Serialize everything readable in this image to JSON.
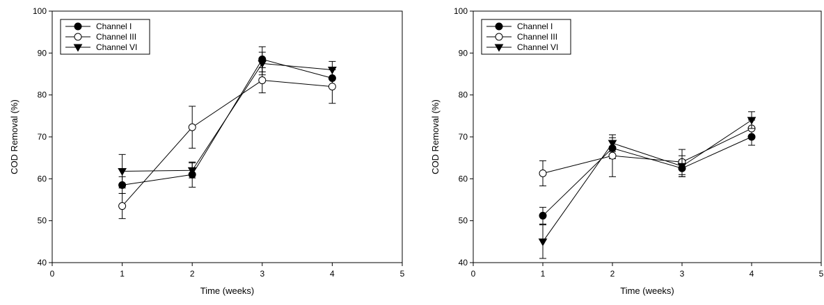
{
  "chart_data": [
    {
      "type": "line",
      "xlabel": "Time (weeks)",
      "ylabel": "COD Removal (%)",
      "xlim": [
        0,
        5
      ],
      "ylim": [
        40,
        100
      ],
      "xticks": [
        0,
        1,
        2,
        3,
        4,
        5
      ],
      "yticks": [
        40,
        50,
        60,
        70,
        80,
        90,
        100
      ],
      "grid": false,
      "legend_position": "top-left",
      "series": [
        {
          "name": "Channel I",
          "marker": "filled-circle",
          "x": [
            1,
            2,
            3,
            4
          ],
          "y": [
            58.5,
            61.0,
            88.5,
            84.0
          ],
          "err": [
            2.0,
            3.0,
            3.0,
            2.0
          ]
        },
        {
          "name": "Channel III",
          "marker": "open-circle",
          "x": [
            1,
            2,
            3,
            4
          ],
          "y": [
            53.5,
            72.3,
            83.5,
            82.0
          ],
          "err": [
            3.0,
            5.0,
            3.0,
            4.0
          ]
        },
        {
          "name": "Channel VI",
          "marker": "filled-triangle-down",
          "x": [
            1,
            2,
            3,
            4
          ],
          "y": [
            61.8,
            62.0,
            87.5,
            86.0
          ],
          "err": [
            4.0,
            1.8,
            2.7,
            2.0
          ]
        }
      ]
    },
    {
      "type": "line",
      "xlabel": "Time (weeks)",
      "ylabel": "COD Removal (%)",
      "xlim": [
        0,
        5
      ],
      "ylim": [
        40,
        100
      ],
      "xticks": [
        0,
        1,
        2,
        3,
        4,
        5
      ],
      "yticks": [
        40,
        50,
        60,
        70,
        80,
        90,
        100
      ],
      "grid": false,
      "legend_position": "top-left",
      "series": [
        {
          "name": "Channel I",
          "marker": "filled-circle",
          "x": [
            1,
            2,
            3,
            4
          ],
          "y": [
            51.2,
            67.3,
            62.5,
            70.0
          ],
          "err": [
            2.0,
            2.5,
            2.0,
            2.0
          ]
        },
        {
          "name": "Channel III",
          "marker": "open-circle",
          "x": [
            1,
            2,
            3,
            4
          ],
          "y": [
            61.3,
            65.5,
            64.0,
            72.0
          ],
          "err": [
            3.0,
            5.0,
            3.0,
            2.0
          ]
        },
        {
          "name": "Channel VI",
          "marker": "filled-triangle-down",
          "x": [
            1,
            2,
            3,
            4
          ],
          "y": [
            45.0,
            68.5,
            63.0,
            74.0
          ],
          "err": [
            4.0,
            2.0,
            2.5,
            2.0
          ]
        }
      ]
    }
  ]
}
